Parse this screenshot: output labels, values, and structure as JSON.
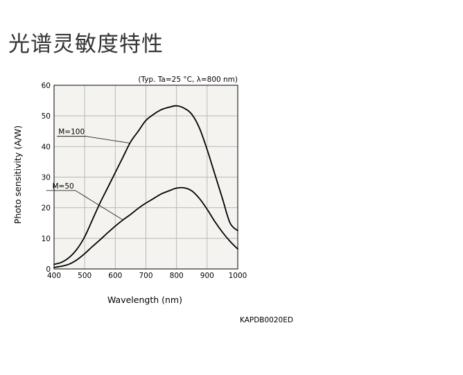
{
  "page": {
    "title": "光谱灵敏度特性",
    "code": "KAPDB0020ED"
  },
  "colors": {
    "plot_background": "#f4f3ef",
    "grid": "#b8b8b8",
    "curve": "#000000",
    "title_text": "#333333"
  },
  "chart_data": {
    "type": "line",
    "title": "",
    "condition": "(Typ. Ta=25 °C, λ=800 nm)",
    "xlabel": "Wavelength (nm)",
    "ylabel": "Photo sensitivity (A/W)",
    "xlim": [
      400,
      1000
    ],
    "ylim": [
      0,
      60
    ],
    "xticks": [
      "400",
      "500",
      "600",
      "700",
      "800",
      "900",
      "1000"
    ],
    "yticks": [
      "0",
      "10",
      "20",
      "30",
      "40",
      "50",
      "60"
    ],
    "grid": true,
    "series": [
      {
        "name": "M=100",
        "x": [
          400,
          425,
          450,
          475,
          500,
          525,
          550,
          575,
          600,
          625,
          650,
          675,
          700,
          725,
          750,
          775,
          800,
          825,
          850,
          875,
          900,
          925,
          950,
          975,
          1000
        ],
        "y": [
          1.5,
          2.2,
          3.8,
          6.5,
          10.5,
          16,
          21.5,
          26.5,
          31.5,
          36.5,
          41.5,
          45,
          48.5,
          50.5,
          52,
          52.8,
          53.3,
          52.5,
          50.5,
          46,
          39,
          31,
          23,
          15,
          12.5
        ]
      },
      {
        "name": "M=50",
        "x": [
          400,
          425,
          450,
          475,
          500,
          525,
          550,
          575,
          600,
          625,
          650,
          675,
          700,
          725,
          750,
          775,
          800,
          825,
          850,
          875,
          900,
          925,
          950,
          975,
          1000
        ],
        "y": [
          0.5,
          0.9,
          1.6,
          3,
          5,
          7.3,
          9.5,
          11.8,
          14,
          16,
          17.8,
          19.8,
          21.5,
          23,
          24.5,
          25.5,
          26.4,
          26.5,
          25.5,
          23,
          19.5,
          15.5,
          12,
          9,
          6.5
        ]
      }
    ],
    "annotations": [
      {
        "text": "M=100",
        "series": "M=100",
        "at_x": 648,
        "label_x": 500,
        "label_y": 44
      },
      {
        "text": "M=50",
        "series": "M=50",
        "at_x": 625,
        "label_x": 465,
        "label_y": 26.3
      }
    ]
  }
}
